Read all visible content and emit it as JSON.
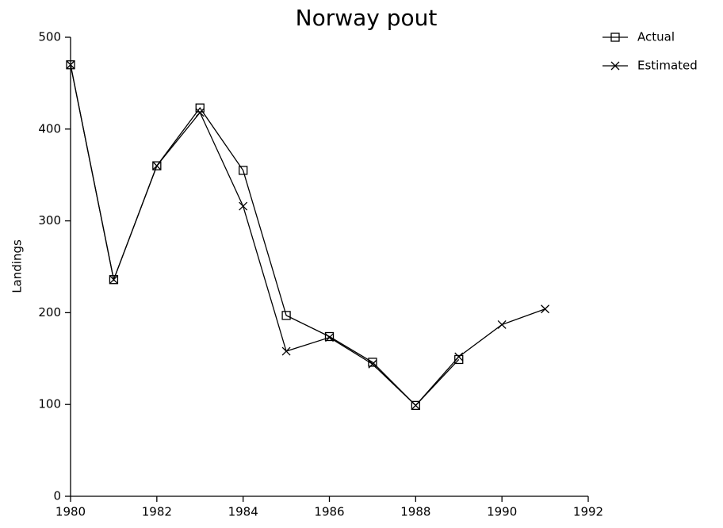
{
  "chart_data": {
    "type": "line",
    "title": "Norway pout",
    "ylabel": "Landings",
    "x": [
      1980,
      1981,
      1982,
      1983,
      1984,
      1985,
      1986,
      1987,
      1988,
      1989,
      1990,
      1991
    ],
    "series": [
      {
        "name": "Actual",
        "color": "#000000",
        "marker": "square",
        "values": [
          470,
          236,
          360,
          423,
          355,
          197,
          174,
          146,
          99,
          149,
          null,
          null
        ]
      },
      {
        "name": "Estimated",
        "color": "#000000",
        "marker": "x",
        "values": [
          470,
          236,
          360,
          418,
          316,
          158,
          173,
          144,
          99,
          152,
          187,
          204
        ]
      }
    ],
    "xlim": [
      1980,
      1992
    ],
    "xticks": [
      1980,
      1982,
      1984,
      1986,
      1988,
      1990,
      1992
    ],
    "ylim": [
      0,
      500
    ],
    "yticks": [
      0,
      100,
      200,
      300,
      400,
      500
    ]
  }
}
